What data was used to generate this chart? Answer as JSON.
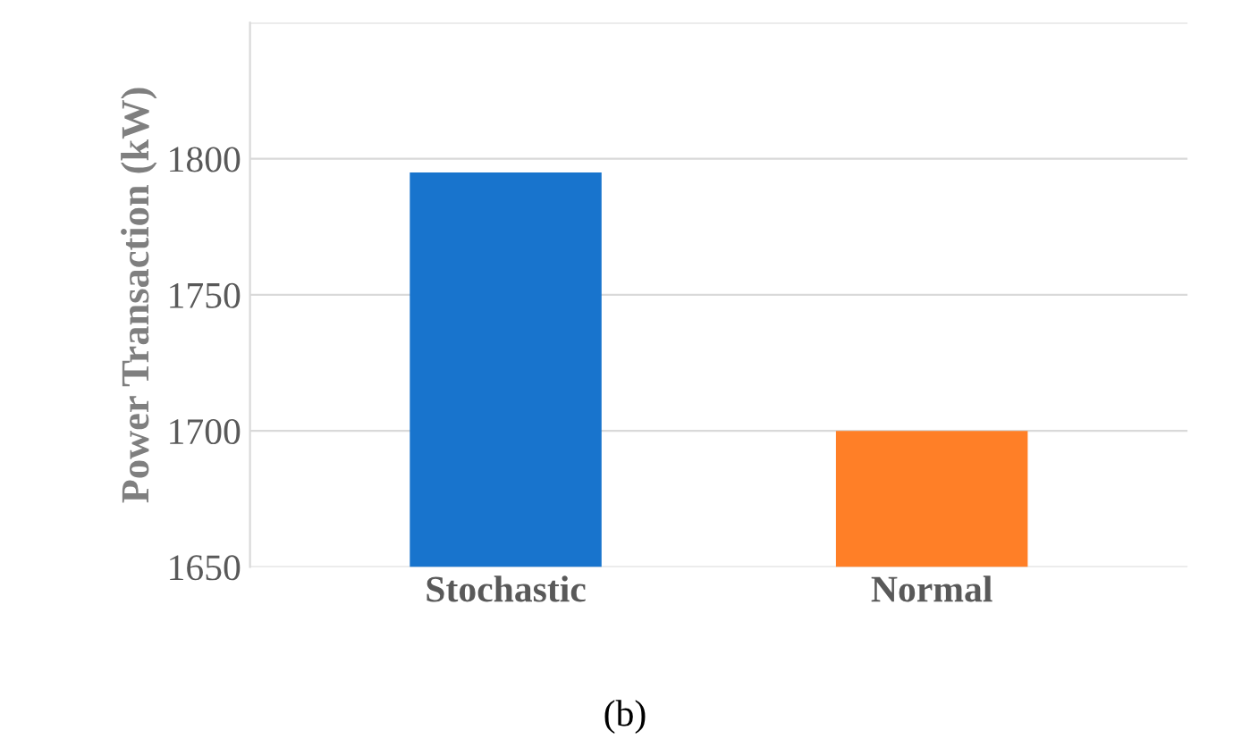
{
  "chart_data": {
    "type": "bar",
    "ylabel": "Power Transaction (kW)",
    "categories": [
      "Stochastic",
      "Normal"
    ],
    "values": [
      1795,
      1700
    ],
    "colors": [
      "#1874cd",
      "#ff7f27"
    ],
    "ylim": [
      1650,
      1850
    ],
    "yticks": [
      1650,
      1700,
      1750,
      1800,
      {
        "value": 1850,
        "label": null
      }
    ],
    "grid": "y",
    "annotations": [
      "(b)"
    ]
  }
}
